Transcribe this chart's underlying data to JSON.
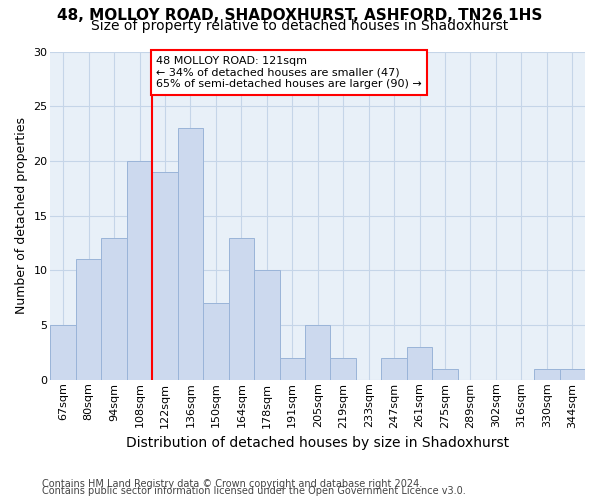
{
  "title1": "48, MOLLOY ROAD, SHADOXHURST, ASHFORD, TN26 1HS",
  "title2": "Size of property relative to detached houses in Shadoxhurst",
  "xlabel": "Distribution of detached houses by size in Shadoxhurst",
  "ylabel": "Number of detached properties",
  "footnote1": "Contains HM Land Registry data © Crown copyright and database right 2024.",
  "footnote2": "Contains public sector information licensed under the Open Government Licence v3.0.",
  "bar_labels": [
    "67sqm",
    "80sqm",
    "94sqm",
    "108sqm",
    "122sqm",
    "136sqm",
    "150sqm",
    "164sqm",
    "178sqm",
    "191sqm",
    "205sqm",
    "219sqm",
    "233sqm",
    "247sqm",
    "261sqm",
    "275sqm",
    "289sqm",
    "302sqm",
    "316sqm",
    "330sqm",
    "344sqm"
  ],
  "bar_values": [
    5,
    11,
    13,
    20,
    19,
    23,
    7,
    13,
    10,
    2,
    5,
    2,
    0,
    2,
    3,
    1,
    0,
    0,
    0,
    1,
    1
  ],
  "bar_color": "#ccd9ee",
  "bar_edge_color": "#9ab4d8",
  "reference_label": "48 MOLLOY ROAD: 121sqm",
  "annotation_line1": "← 34% of detached houses are smaller (47)",
  "annotation_line2": "65% of semi-detached houses are larger (90) →",
  "annotation_box_color": "white",
  "annotation_box_edge_color": "red",
  "ref_line_color": "red",
  "ref_bar_index": 4,
  "ylim": [
    0,
    30
  ],
  "yticks": [
    0,
    5,
    10,
    15,
    20,
    25,
    30
  ],
  "grid_color": "#c5d5e8",
  "bg_color": "#e8f0f8",
  "title1_fontsize": 11,
  "title2_fontsize": 10,
  "xlabel_fontsize": 10,
  "ylabel_fontsize": 9,
  "tick_fontsize": 8,
  "footnote_fontsize": 7
}
